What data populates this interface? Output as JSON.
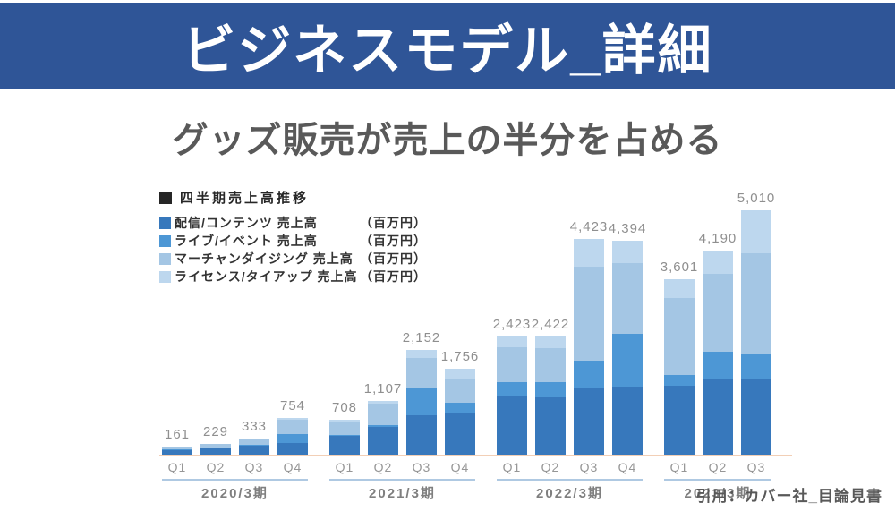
{
  "banner": {
    "title": "ビジネスモデル_詳細"
  },
  "subtitle": "グッズ販売が売上の半分を占める",
  "citation": "引用：カバー社_目論見書",
  "colors": {
    "banner_bg": "#2F5597",
    "banner_text": "#FFFFFF",
    "subtitle_text": "#595959",
    "value_label_text": "#8F8F8F",
    "axis_line": "#F2CFB6",
    "group_underline": "#AFC9E2",
    "legend_title_text": "#262626",
    "legend_title_swatch": "#262626"
  },
  "chart_data": {
    "type": "bar",
    "stacked": true,
    "title": "四半期売上高推移",
    "unit_label": "（百万円）",
    "legend_position": "top-left",
    "grid": false,
    "ylim": [
      0,
      5200
    ],
    "groups": [
      {
        "label": "2020/3期",
        "quarters": [
          "Q1",
          "Q2",
          "Q3",
          "Q4"
        ]
      },
      {
        "label": "2021/3期",
        "quarters": [
          "Q1",
          "Q2",
          "Q3",
          "Q4"
        ]
      },
      {
        "label": "2022/3期",
        "quarters": [
          "Q1",
          "Q2",
          "Q3",
          "Q4"
        ]
      },
      {
        "label": "2023/3期",
        "quarters": [
          "Q1",
          "Q2",
          "Q3"
        ]
      }
    ],
    "categories": [
      "Q1",
      "Q2",
      "Q3",
      "Q4",
      "Q1",
      "Q2",
      "Q3",
      "Q4",
      "Q1",
      "Q2",
      "Q3",
      "Q4",
      "Q1",
      "Q2",
      "Q3"
    ],
    "series": [
      {
        "name": "配信/コンテンツ 売上高",
        "unit": "（百万円）",
        "color": "#3778BC",
        "values": [
          100,
          128,
          180,
          239,
          385,
          569,
          810,
          844,
          1200,
          1180,
          1380,
          1400,
          1420,
          1545,
          1545
        ]
      },
      {
        "name": "ライブ/イベント 売上高",
        "unit": "（百万円）",
        "color": "#4D97D5",
        "values": [
          8,
          10,
          15,
          183,
          20,
          30,
          565,
          220,
          280,
          300,
          545,
          1070,
          205,
          570,
          515
        ]
      },
      {
        "name": "マーチャンダイジング 売上高",
        "unit": "（百万円）",
        "color": "#A4C6E4",
        "values": [
          45,
          80,
          125,
          300,
          270,
          450,
          600,
          500,
          720,
          700,
          1925,
          1460,
          1590,
          1595,
          2065
        ]
      },
      {
        "name": "ライセンス/タイアップ 売上高",
        "unit": "（百万円）",
        "color": "#BDD7EE",
        "values": [
          8,
          11,
          13,
          32,
          33,
          58,
          177,
          192,
          223,
          242,
          573,
          464,
          386,
          480,
          885
        ]
      }
    ],
    "totals": [
      161,
      229,
      333,
      754,
      708,
      1107,
      2152,
      1756,
      2423,
      2422,
      4423,
      4394,
      3601,
      4190,
      5010
    ],
    "total_labels": [
      "161",
      "229",
      "333",
      "754",
      "708",
      "1,107",
      "2,152",
      "1,756",
      "2,423",
      "2,422",
      "4,423",
      "4,394",
      "3,601",
      "4,190",
      "5,010"
    ]
  }
}
